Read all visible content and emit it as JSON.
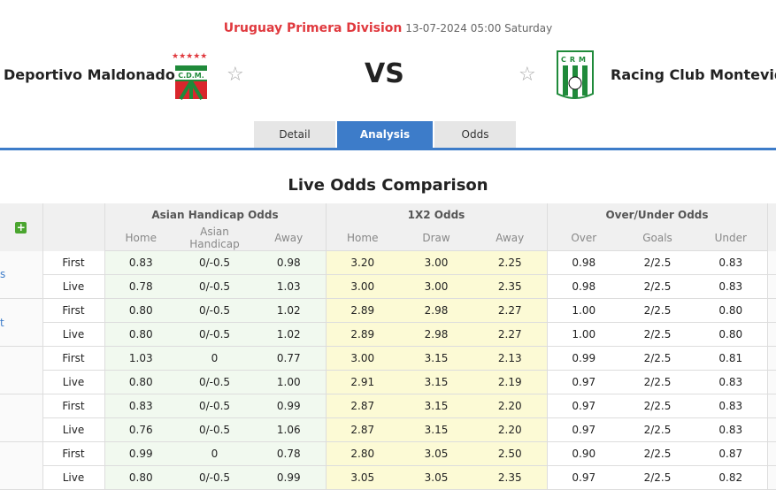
{
  "match": {
    "league": "Uruguay Primera Division",
    "datetime": "13-07-2024 05:00 Saturday",
    "home": "Deportivo Maldonado",
    "away": "Racing Club Montevideo",
    "vs": "VS",
    "home_logo_text": "C.D.M.",
    "away_logo_text": "CRM"
  },
  "tabs": [
    {
      "label": "Detail"
    },
    {
      "label": "Analysis",
      "active": true
    },
    {
      "label": "Odds"
    }
  ],
  "section_title": "Live Odds Comparison",
  "table": {
    "groups": [
      "Asian Handicap Odds",
      "1X2 Odds",
      "Over/Under Odds"
    ],
    "subheaders": [
      "Home",
      "Asian Handicap",
      "Away",
      "Home",
      "Draw",
      "Away",
      "Over",
      "Goals",
      "Under"
    ],
    "companies": [
      {
        "name_fragment": "s",
        "rows": [
          {
            "type": "First",
            "v": [
              "0.83",
              "0/-0.5",
              "0.98",
              "3.20",
              "3.00",
              "2.25",
              "0.98",
              "2/2.5",
              "0.83"
            ]
          },
          {
            "type": "Live",
            "v": [
              "0.78",
              "0/-0.5",
              "1.03",
              "3.00",
              "3.00",
              "2.35",
              "0.98",
              "2/2.5",
              "0.83"
            ]
          }
        ]
      },
      {
        "name_fragment": "t",
        "rows": [
          {
            "type": "First",
            "v": [
              "0.80",
              "0/-0.5",
              "1.02",
              "2.89",
              "2.98",
              "2.27",
              "1.00",
              "2/2.5",
              "0.80"
            ]
          },
          {
            "type": "Live",
            "v": [
              "0.80",
              "0/-0.5",
              "1.02",
              "2.89",
              "2.98",
              "2.27",
              "1.00",
              "2/2.5",
              "0.80"
            ]
          }
        ]
      },
      {
        "name_fragment": "",
        "rows": [
          {
            "type": "First",
            "v": [
              "1.03",
              "0",
              "0.77",
              "3.00",
              "3.15",
              "2.13",
              "0.99",
              "2/2.5",
              "0.81"
            ]
          },
          {
            "type": "Live",
            "v": [
              "0.80",
              "0/-0.5",
              "1.00",
              "2.91",
              "3.15",
              "2.19",
              "0.97",
              "2/2.5",
              "0.83"
            ]
          }
        ]
      },
      {
        "name_fragment": "",
        "rows": [
          {
            "type": "First",
            "v": [
              "0.83",
              "0/-0.5",
              "0.99",
              "2.87",
              "3.15",
              "2.20",
              "0.97",
              "2/2.5",
              "0.83"
            ]
          },
          {
            "type": "Live",
            "v": [
              "0.76",
              "0/-0.5",
              "1.06",
              "2.87",
              "3.15",
              "2.20",
              "0.97",
              "2/2.5",
              "0.83"
            ]
          }
        ]
      },
      {
        "name_fragment": "",
        "rows": [
          {
            "type": "First",
            "v": [
              "0.99",
              "0",
              "0.78",
              "2.80",
              "3.05",
              "2.50",
              "0.90",
              "2/2.5",
              "0.87"
            ]
          },
          {
            "type": "Live",
            "v": [
              "0.80",
              "0/-0.5",
              "0.99",
              "3.05",
              "3.05",
              "2.35",
              "0.97",
              "2/2.5",
              "0.82"
            ]
          }
        ]
      }
    ]
  },
  "colors": {
    "accent": "#3d7cc9",
    "league": "#e0393e",
    "ah_bg": "#f1f9ef",
    "x2_bg": "#fcfad5",
    "add": "#4aa52f"
  },
  "icons": {
    "favorite": "star-outline-icon",
    "add": "plus-icon"
  }
}
